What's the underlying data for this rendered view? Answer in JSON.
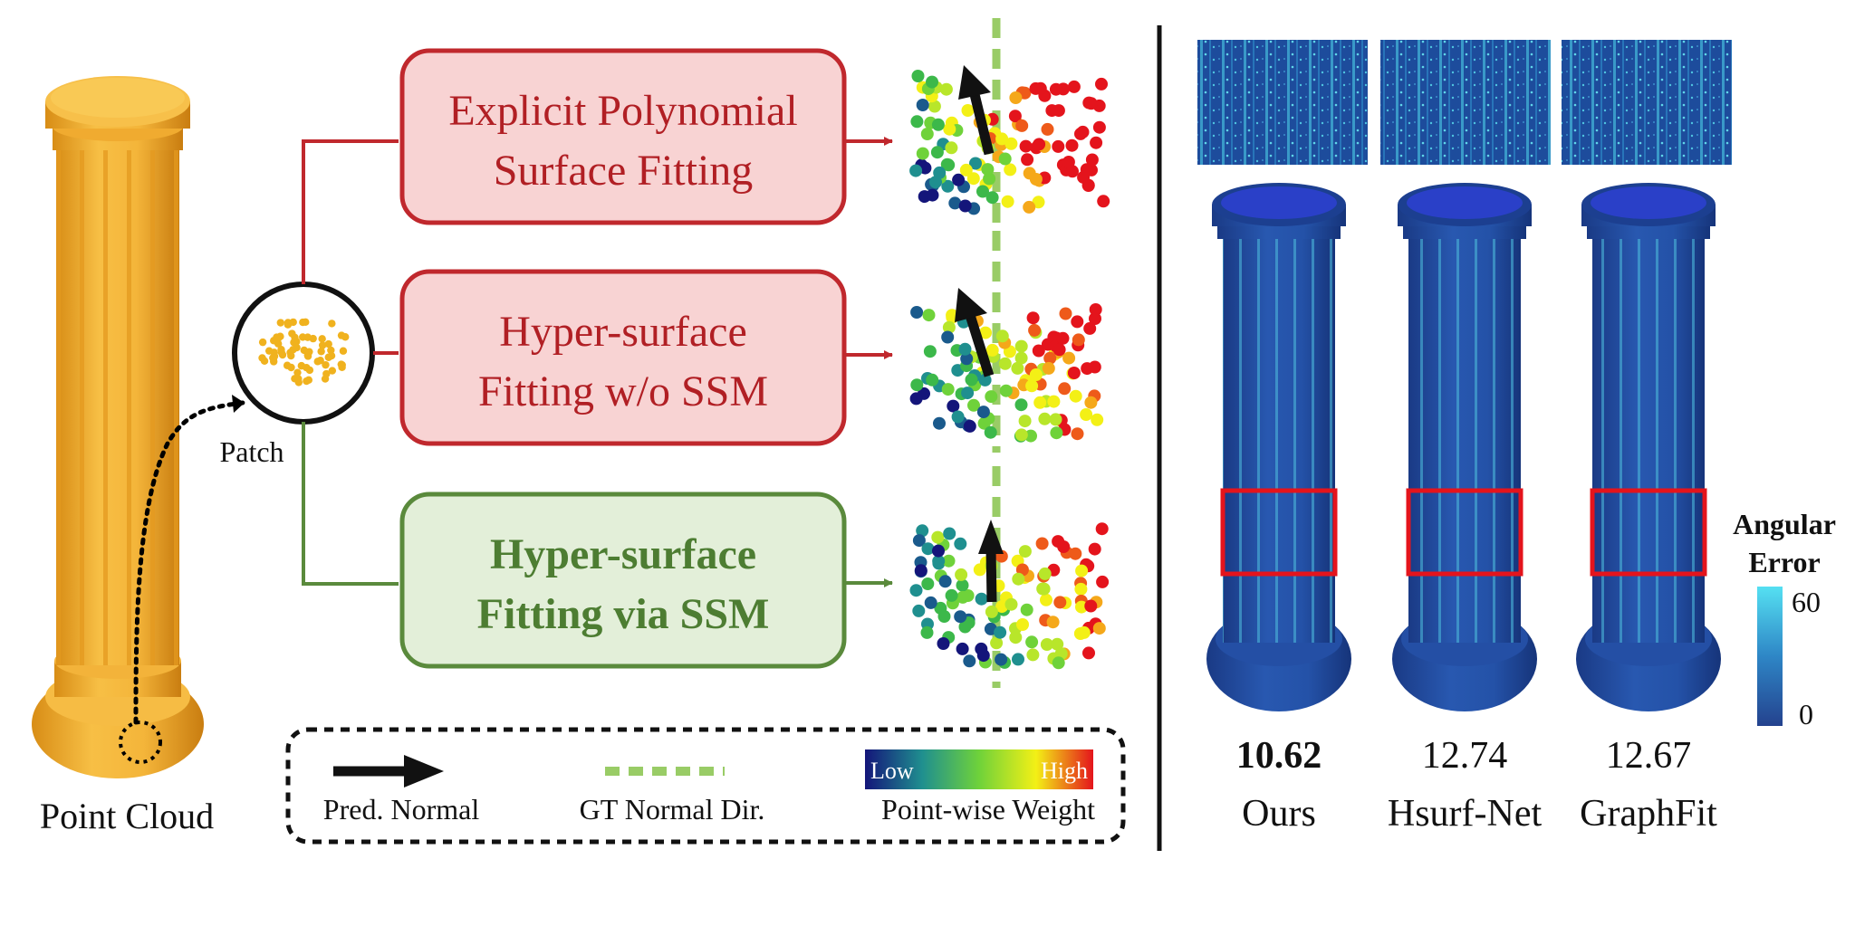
{
  "left": {
    "point_cloud_label": "Point Cloud",
    "patch_label": "Patch"
  },
  "methods": [
    {
      "id": "explicit",
      "line1": "Explicit Polynomial",
      "line2": "Surface Fitting"
    },
    {
      "id": "hyper-wo-ssm",
      "line1": "Hyper-surface",
      "line2": "Fitting w/o SSM"
    },
    {
      "id": "hyper-ssm",
      "line1": "Hyper-surface",
      "line2": "Fitting via SSM"
    }
  ],
  "legend": {
    "pred_normal": "Pred. Normal",
    "gt_normal": "GT Normal Dir.",
    "weight": "Point-wise Weight",
    "low": "Low",
    "high": "High"
  },
  "comparison": {
    "results": [
      {
        "method": "Ours",
        "error": "10.62",
        "best": true
      },
      {
        "method": "Hsurf-Net",
        "error": "12.74",
        "best": false
      },
      {
        "method": "GraphFit",
        "error": "12.67",
        "best": false
      }
    ],
    "colorbar": {
      "title_line1": "Angular",
      "title_line2": "Error",
      "max": "60",
      "min": "0"
    }
  },
  "colors": {
    "red_border": "#c0282d",
    "red_fill": "#f8d3d3",
    "red_text": "#b11f24",
    "green_border": "#5a8a3c",
    "green_fill": "#e3efd9",
    "green_text": "#4d7d32",
    "column_orange": "#f2b233",
    "column_blue": "#1f4fa0",
    "gt_green": "#99cc66"
  }
}
